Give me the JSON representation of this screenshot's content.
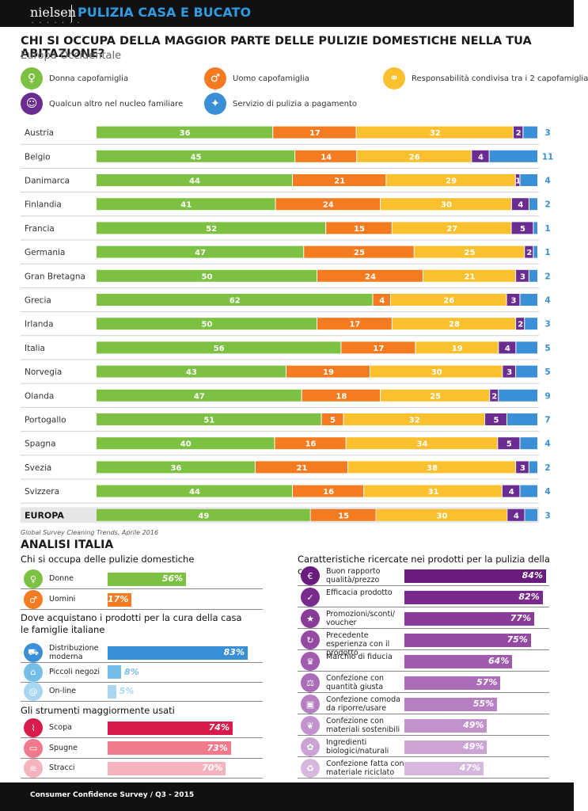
{
  "header": {
    "logo": "nielsen",
    "logo_dots": "• • • • • • •",
    "title": "PULIZIA CASA E BUCATO"
  },
  "main_title": "CHI SI OCCUPA DELLA MAGGIOR PARTE DELLE PULIZIE DOMESTICHE NELLA TUA ABITAZIONE?",
  "subtitle": "Europa Occidentale",
  "legend": [
    {
      "label": "Donna capofamiglia",
      "color": "#7dc142",
      "icon": "woman-icon"
    },
    {
      "label": "Uomo capofamiglia",
      "color": "#f47b20",
      "icon": "man-icon"
    },
    {
      "label": "Responsabilità condivisa tra i 2 capofamiglia",
      "color": "#fbc02d",
      "icon": "couple-icon"
    },
    {
      "label": "Qualcun altro nel nucleo familiare",
      "color": "#6a2c91",
      "icon": "child-icon"
    },
    {
      "label": "Servizio di pulizia a pagamento",
      "color": "#3a8fd6",
      "icon": "cleaner-icon"
    }
  ],
  "chart_data": {
    "type": "bar",
    "stacked": true,
    "orientation": "horizontal",
    "categories": [
      "Austria",
      "Belgio",
      "Danimarca",
      "Finlandia",
      "Francia",
      "Germania",
      "Gran Bretagna",
      "Grecia",
      "Irlanda",
      "Italia",
      "Norvegia",
      "Olanda",
      "Portogallo",
      "Spagna",
      "Svezia",
      "Svizzera",
      "EUROPA"
    ],
    "series": [
      {
        "name": "Donna capofamiglia",
        "color": "#7dc142",
        "values": [
          36,
          45,
          44,
          41,
          52,
          47,
          50,
          62,
          50,
          56,
          43,
          47,
          51,
          40,
          36,
          44,
          49
        ]
      },
      {
        "name": "Uomo capofamiglia",
        "color": "#f47b20",
        "values": [
          17,
          14,
          21,
          24,
          15,
          25,
          24,
          4,
          17,
          17,
          19,
          18,
          5,
          16,
          21,
          16,
          15
        ]
      },
      {
        "name": "Responsabilità condivisa tra i 2 capofamiglia",
        "color": "#fbc02d",
        "values": [
          32,
          26,
          29,
          30,
          27,
          25,
          21,
          26,
          28,
          19,
          30,
          25,
          32,
          34,
          38,
          31,
          30
        ]
      },
      {
        "name": "Qualcun altro nel nucleo familiare",
        "color": "#6a2c91",
        "values": [
          2,
          4,
          1,
          4,
          5,
          2,
          3,
          3,
          2,
          4,
          3,
          2,
          5,
          5,
          3,
          4,
          4
        ]
      },
      {
        "name": "Servizio di pulizia a pagamento",
        "color": "#3a8fd6",
        "values": [
          3,
          11,
          4,
          2,
          1,
          1,
          2,
          4,
          3,
          5,
          5,
          9,
          7,
          4,
          2,
          4,
          3
        ]
      }
    ]
  },
  "source": "Global Survey Cleaning Trends, Aprile 2016",
  "analisi_title": "ANALISI ITALIA",
  "pulizie": {
    "title": "Chi si occupa delle pulizie domestiche",
    "rows": [
      {
        "label": "Donne",
        "value": 56,
        "display": "56%",
        "color": "#7dc142",
        "icon": "woman-icon"
      },
      {
        "label": "Uomini",
        "value": 17,
        "display": "17%",
        "color": "#f47b20",
        "icon": "man-icon"
      }
    ]
  },
  "acquisti": {
    "title": "Dove acquistano i prodotti per la cura della casa le famiglie italiane",
    "rows": [
      {
        "label": "Distribuzione moderna",
        "value": 83,
        "display": "83%",
        "color": "#3a8fd6",
        "icon": "cart-icon"
      },
      {
        "label": "Piccoli negozi",
        "value": 8,
        "display": "8%",
        "color": "#74bde8",
        "icon": "shop-icon"
      },
      {
        "label": "On-line",
        "value": 5,
        "display": "5%",
        "color": "#a9d7f2",
        "icon": "online-icon"
      }
    ]
  },
  "strumenti": {
    "title": "Gli strumenti maggiormente usati",
    "rows": [
      {
        "label": "Scopa",
        "value": 74,
        "display": "74%",
        "color": "#d81b4a",
        "icon": "broom-icon"
      },
      {
        "label": "Spugne",
        "value": 73,
        "display": "73%",
        "color": "#f07a8c",
        "icon": "sponge-icon"
      },
      {
        "label": "Stracci",
        "value": 70,
        "display": "70%",
        "color": "#f5b3bd",
        "icon": "cloth-icon"
      }
    ]
  },
  "caratteristiche": {
    "title": "Caratteristiche ricercate nei prodotti per la pulizia della casa",
    "rows": [
      {
        "label": "Buon rapporto qualità/prezzo",
        "value": 84,
        "display": "84%",
        "color": "#6a1b7e",
        "icon": "value-icon"
      },
      {
        "label": "Efficacia prodotto",
        "value": 82,
        "display": "82%",
        "color": "#7a2a8c",
        "icon": "check-icon"
      },
      {
        "label": "Promozioni/sconti/ voucher",
        "value": 77,
        "display": "77%",
        "color": "#8a3a99",
        "icon": "star-icon"
      },
      {
        "label": "Precedente esperienza con il prodotto",
        "value": 75,
        "display": "75%",
        "color": "#944aa3",
        "icon": "refresh-icon"
      },
      {
        "label": "Marchio di fiducia",
        "value": 64,
        "display": "64%",
        "color": "#a05bae",
        "icon": "brand-icon"
      },
      {
        "label": "Confezione con quantità giusta",
        "value": 57,
        "display": "57%",
        "color": "#ab6db8",
        "icon": "quantity-icon"
      },
      {
        "label": "Confezione comoda da riporre/usare",
        "value": 55,
        "display": "55%",
        "color": "#b67fc2",
        "icon": "package-icon"
      },
      {
        "label": "Confezione con materiali sostenibili",
        "value": 49,
        "display": "49%",
        "color": "#c192cc",
        "icon": "leaf-icon"
      },
      {
        "label": "Ingredienti biologici/naturali",
        "value": 49,
        "display": "49%",
        "color": "#cba4d5",
        "icon": "natural-icon"
      },
      {
        "label": "Confezione fatta con materiale riciclato",
        "value": 47,
        "display": "47%",
        "color": "#d6b8df",
        "icon": "recycle-icon"
      }
    ]
  },
  "footer": "Consumer Confidence Survey / Q3 - 2015"
}
